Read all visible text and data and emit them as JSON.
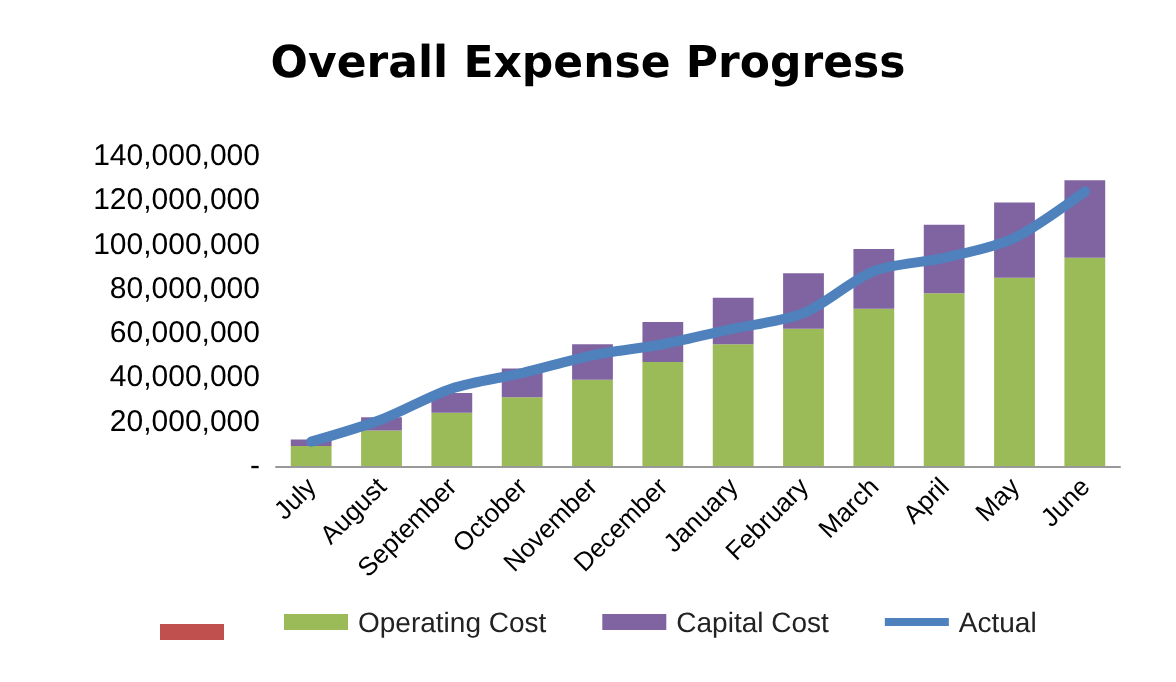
{
  "chart_data": {
    "type": "bar",
    "title": "Overall Expense Progress",
    "stacked": true,
    "categories": [
      "July",
      "August",
      "September",
      "October",
      "November",
      "December",
      "January",
      "February",
      "March",
      "April",
      "May",
      "June"
    ],
    "series": [
      {
        "name": "Operating Cost",
        "color": "#9bbb59",
        "values": [
          9000000,
          16000000,
          24000000,
          31000000,
          39000000,
          47000000,
          55000000,
          62000000,
          71000000,
          78000000,
          85000000,
          94000000
        ]
      },
      {
        "name": "Capital Cost",
        "color": "#8064a2",
        "values": [
          3000000,
          6000000,
          9000000,
          13000000,
          16000000,
          18000000,
          21000000,
          25000000,
          27000000,
          31000000,
          34000000,
          35000000
        ]
      },
      {
        "name": "Actual",
        "type": "line",
        "color": "#4f81bd",
        "marker": "none",
        "values": [
          11000000,
          21000000,
          35000000,
          42000000,
          50000000,
          55000000,
          62000000,
          69000000,
          88000000,
          94000000,
          103000000,
          124000000
        ]
      }
    ],
    "ylim": [
      0,
      140000000
    ],
    "yticks": [
      {
        "value": 0,
        "label": "-"
      },
      {
        "value": 20000000,
        "label": "20,000,000"
      },
      {
        "value": 40000000,
        "label": "40,000,000"
      },
      {
        "value": 60000000,
        "label": "60,000,000"
      },
      {
        "value": 80000000,
        "label": "80,000,000"
      },
      {
        "value": 100000000,
        "label": "100,000,000"
      },
      {
        "value": 120000000,
        "label": "120,000,000"
      },
      {
        "value": 140000000,
        "label": "140,000,000"
      }
    ],
    "grid": false,
    "legend": "bottom"
  }
}
